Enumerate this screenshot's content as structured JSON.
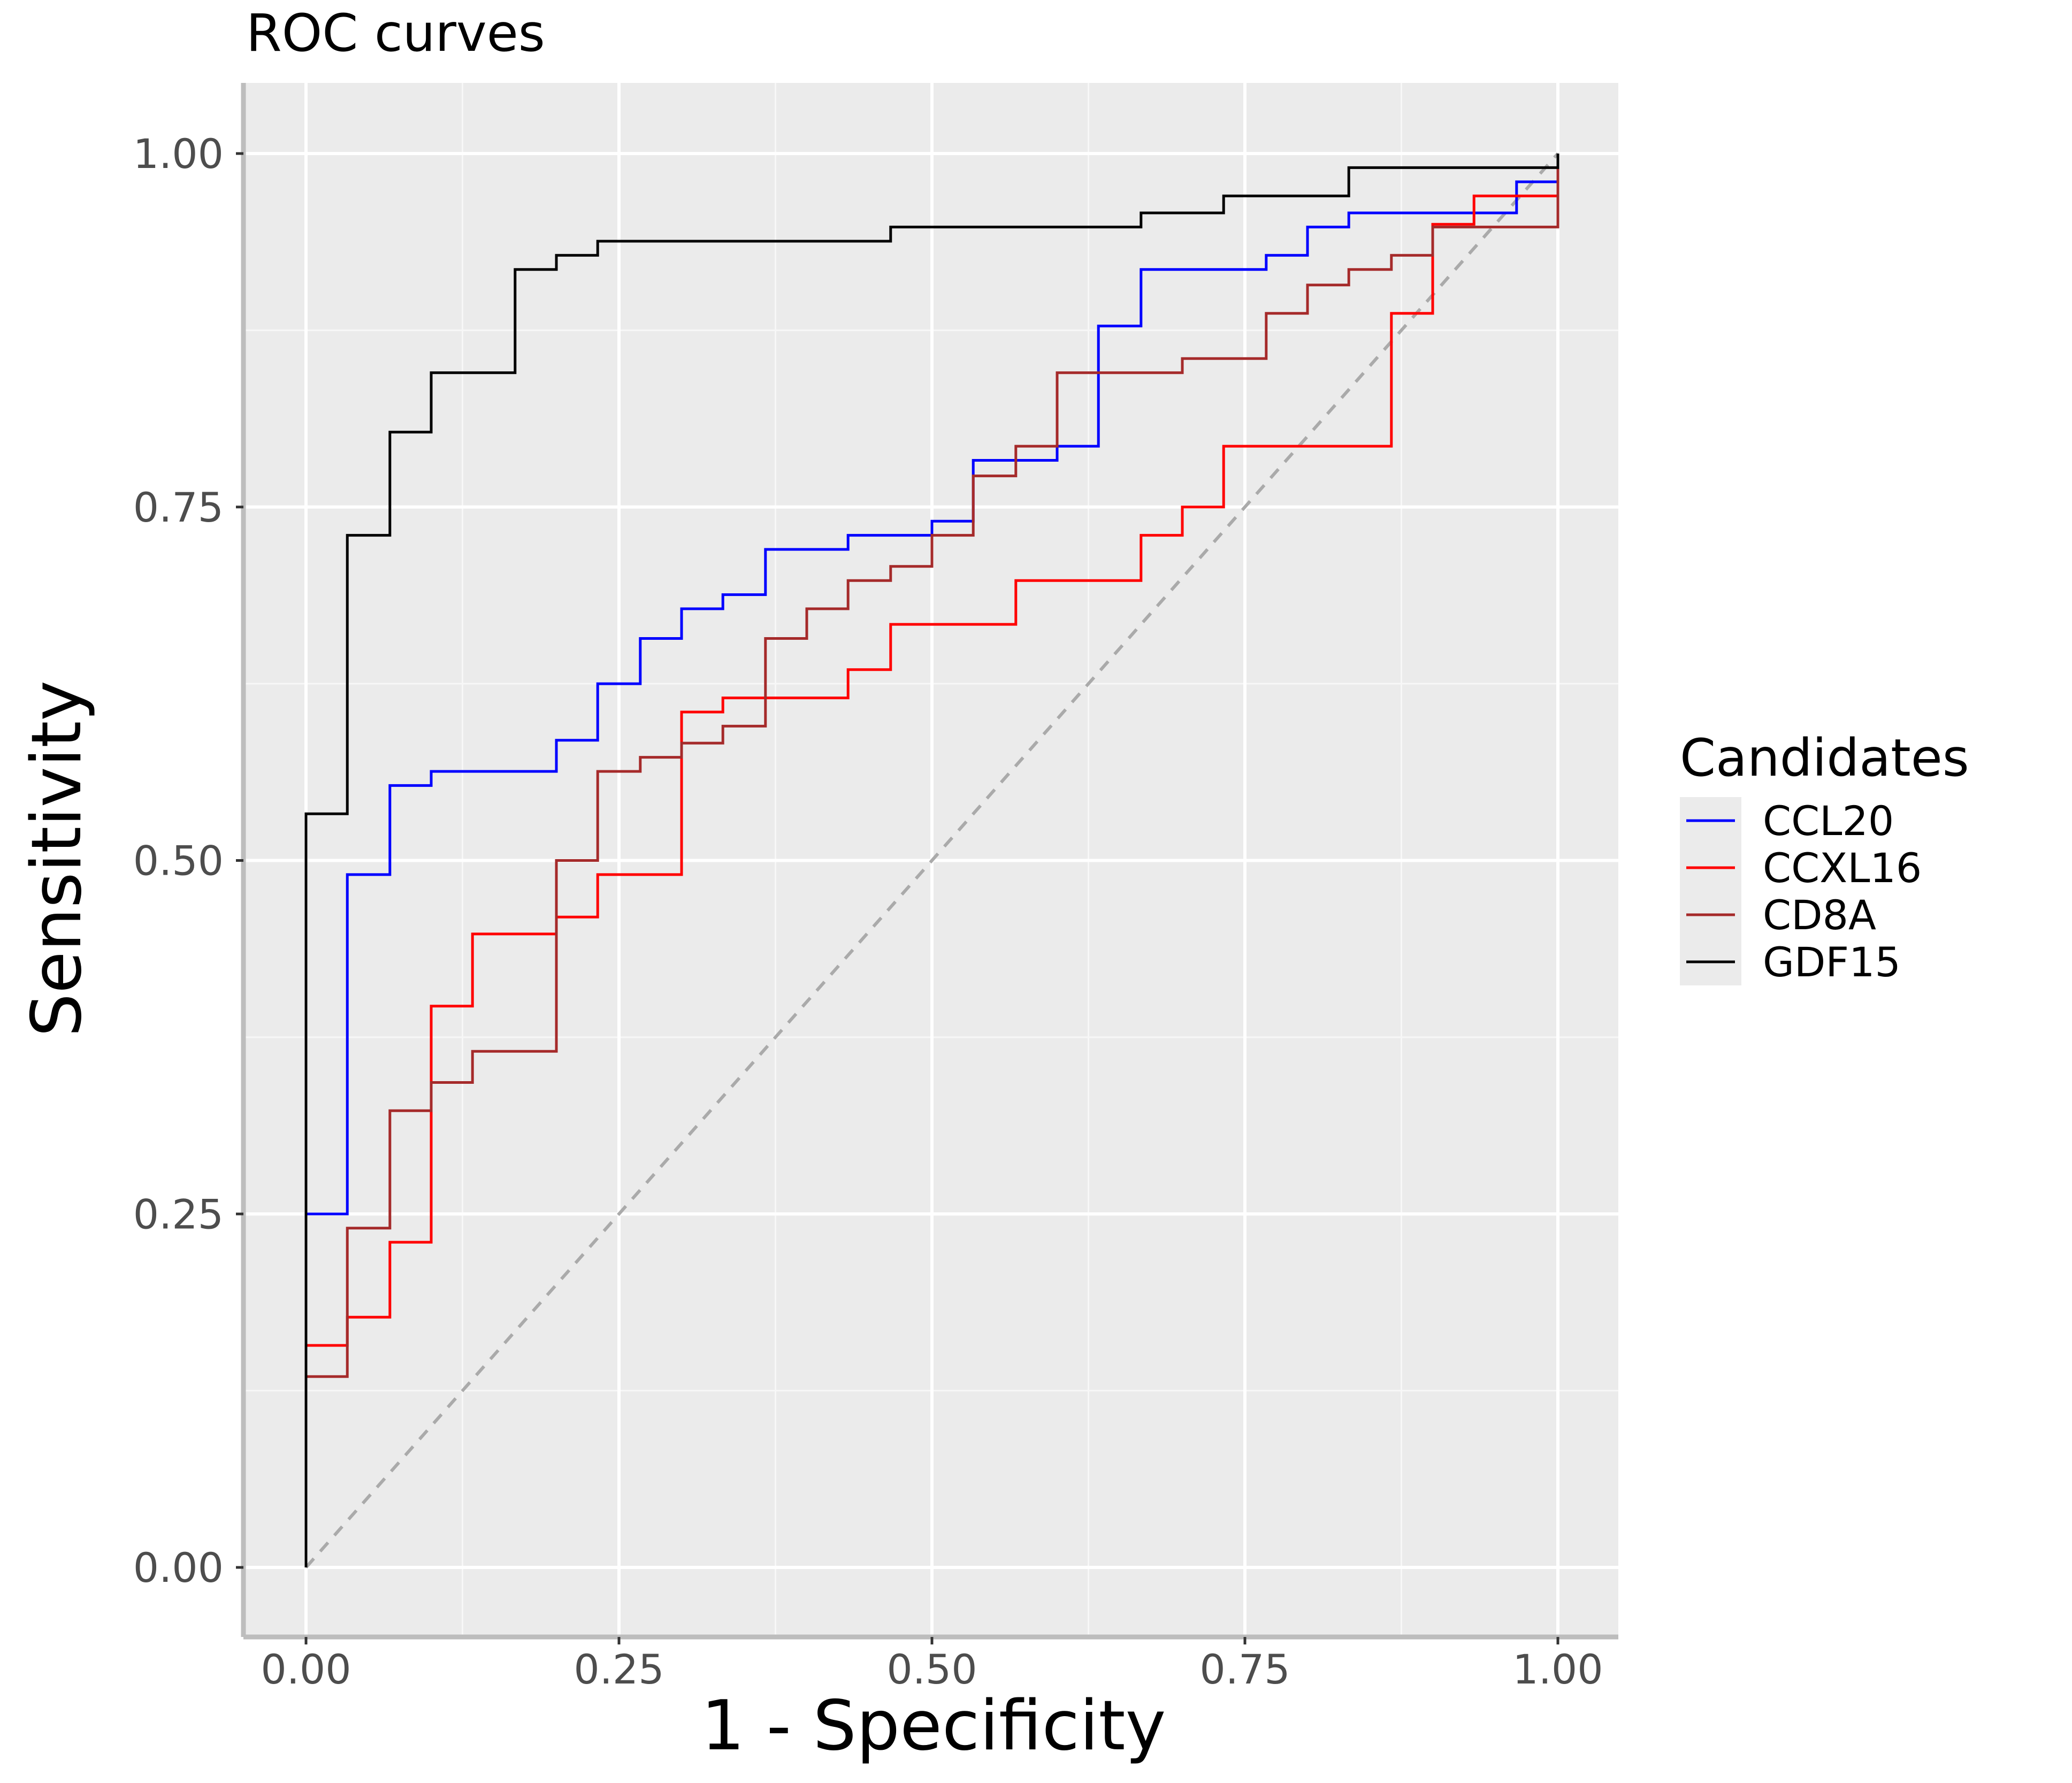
{
  "chart_data": {
    "type": "line",
    "title": "ROC curves",
    "xlabel": "1 - Specificity",
    "ylabel": "Sensitivity",
    "xlim": [
      0,
      1
    ],
    "ylim": [
      0,
      1
    ],
    "xticks": [
      0,
      0.25,
      0.5,
      0.75,
      1
    ],
    "yticks": [
      0,
      0.25,
      0.5,
      0.75,
      1
    ],
    "xtick_labels": [
      "0.00",
      "0.25",
      "0.50",
      "0.75",
      "1.00"
    ],
    "ytick_labels": [
      "0.00",
      "0.25",
      "0.50",
      "0.75",
      "1.00"
    ],
    "grid": true,
    "background": "#ebebeb",
    "legend": {
      "title": "Candidates",
      "position": "right"
    },
    "reference_line": {
      "from": [
        0,
        0
      ],
      "to": [
        1,
        1
      ],
      "color": "#aaaaaa",
      "style": "dashed"
    },
    "series": [
      {
        "name": "CCL20",
        "color": "#0000ff",
        "points": [
          [
            0,
            0
          ],
          [
            0,
            0.25
          ],
          [
            0.033,
            0.25
          ],
          [
            0.033,
            0.49
          ],
          [
            0.067,
            0.49
          ],
          [
            0.067,
            0.553
          ],
          [
            0.1,
            0.553
          ],
          [
            0.1,
            0.563
          ],
          [
            0.2,
            0.563
          ],
          [
            0.2,
            0.585
          ],
          [
            0.233,
            0.585
          ],
          [
            0.233,
            0.625
          ],
          [
            0.267,
            0.625
          ],
          [
            0.267,
            0.657
          ],
          [
            0.3,
            0.657
          ],
          [
            0.3,
            0.678
          ],
          [
            0.333,
            0.678
          ],
          [
            0.333,
            0.688
          ],
          [
            0.367,
            0.688
          ],
          [
            0.367,
            0.72
          ],
          [
            0.433,
            0.72
          ],
          [
            0.433,
            0.73
          ],
          [
            0.5,
            0.73
          ],
          [
            0.5,
            0.74
          ],
          [
            0.533,
            0.74
          ],
          [
            0.533,
            0.783
          ],
          [
            0.6,
            0.783
          ],
          [
            0.6,
            0.793
          ],
          [
            0.633,
            0.793
          ],
          [
            0.633,
            0.878
          ],
          [
            0.667,
            0.878
          ],
          [
            0.667,
            0.918
          ],
          [
            0.767,
            0.918
          ],
          [
            0.767,
            0.928
          ],
          [
            0.8,
            0.928
          ],
          [
            0.8,
            0.948
          ],
          [
            0.833,
            0.948
          ],
          [
            0.833,
            0.958
          ],
          [
            0.967,
            0.958
          ],
          [
            0.967,
            0.98
          ],
          [
            1,
            0.98
          ],
          [
            1,
            1
          ]
        ]
      },
      {
        "name": "CCXL16",
        "color": "#ff0000",
        "points": [
          [
            0,
            0
          ],
          [
            0,
            0.157
          ],
          [
            0.033,
            0.157
          ],
          [
            0.033,
            0.177
          ],
          [
            0.067,
            0.177
          ],
          [
            0.067,
            0.23
          ],
          [
            0.1,
            0.23
          ],
          [
            0.1,
            0.397
          ],
          [
            0.133,
            0.397
          ],
          [
            0.133,
            0.448
          ],
          [
            0.2,
            0.448
          ],
          [
            0.2,
            0.46
          ],
          [
            0.233,
            0.46
          ],
          [
            0.233,
            0.49
          ],
          [
            0.3,
            0.49
          ],
          [
            0.3,
            0.605
          ],
          [
            0.333,
            0.605
          ],
          [
            0.333,
            0.615
          ],
          [
            0.433,
            0.615
          ],
          [
            0.433,
            0.635
          ],
          [
            0.467,
            0.635
          ],
          [
            0.467,
            0.667
          ],
          [
            0.567,
            0.667
          ],
          [
            0.567,
            0.698
          ],
          [
            0.667,
            0.698
          ],
          [
            0.667,
            0.73
          ],
          [
            0.7,
            0.73
          ],
          [
            0.7,
            0.75
          ],
          [
            0.733,
            0.75
          ],
          [
            0.733,
            0.793
          ],
          [
            0.867,
            0.793
          ],
          [
            0.867,
            0.887
          ],
          [
            0.9,
            0.887
          ],
          [
            0.9,
            0.95
          ],
          [
            0.933,
            0.95
          ],
          [
            0.933,
            0.97
          ],
          [
            1,
            0.97
          ],
          [
            1,
            1
          ]
        ]
      },
      {
        "name": "CD8A",
        "color": "#a52a2a",
        "points": [
          [
            0,
            0
          ],
          [
            0,
            0.135
          ],
          [
            0.033,
            0.135
          ],
          [
            0.033,
            0.24
          ],
          [
            0.067,
            0.24
          ],
          [
            0.067,
            0.323
          ],
          [
            0.1,
            0.323
          ],
          [
            0.1,
            0.343
          ],
          [
            0.133,
            0.343
          ],
          [
            0.133,
            0.365
          ],
          [
            0.2,
            0.365
          ],
          [
            0.2,
            0.5
          ],
          [
            0.233,
            0.5
          ],
          [
            0.233,
            0.563
          ],
          [
            0.267,
            0.563
          ],
          [
            0.267,
            0.573
          ],
          [
            0.3,
            0.573
          ],
          [
            0.3,
            0.583
          ],
          [
            0.333,
            0.583
          ],
          [
            0.333,
            0.595
          ],
          [
            0.367,
            0.595
          ],
          [
            0.367,
            0.657
          ],
          [
            0.4,
            0.657
          ],
          [
            0.4,
            0.678
          ],
          [
            0.433,
            0.678
          ],
          [
            0.433,
            0.698
          ],
          [
            0.467,
            0.698
          ],
          [
            0.467,
            0.708
          ],
          [
            0.5,
            0.708
          ],
          [
            0.5,
            0.73
          ],
          [
            0.533,
            0.73
          ],
          [
            0.533,
            0.772
          ],
          [
            0.567,
            0.772
          ],
          [
            0.567,
            0.793
          ],
          [
            0.6,
            0.793
          ],
          [
            0.6,
            0.845
          ],
          [
            0.7,
            0.845
          ],
          [
            0.7,
            0.855
          ],
          [
            0.767,
            0.855
          ],
          [
            0.767,
            0.887
          ],
          [
            0.8,
            0.887
          ],
          [
            0.8,
            0.907
          ],
          [
            0.833,
            0.907
          ],
          [
            0.833,
            0.918
          ],
          [
            0.867,
            0.918
          ],
          [
            0.867,
            0.928
          ],
          [
            0.9,
            0.928
          ],
          [
            0.9,
            0.948
          ],
          [
            1,
            0.948
          ],
          [
            1,
            1
          ]
        ]
      },
      {
        "name": "GDF15",
        "color": "#000000",
        "points": [
          [
            0,
            0
          ],
          [
            0,
            0.533
          ],
          [
            0.033,
            0.533
          ],
          [
            0.033,
            0.73
          ],
          [
            0.067,
            0.73
          ],
          [
            0.067,
            0.803
          ],
          [
            0.1,
            0.803
          ],
          [
            0.1,
            0.845
          ],
          [
            0.167,
            0.845
          ],
          [
            0.167,
            0.918
          ],
          [
            0.2,
            0.918
          ],
          [
            0.2,
            0.928
          ],
          [
            0.233,
            0.928
          ],
          [
            0.233,
            0.938
          ],
          [
            0.467,
            0.938
          ],
          [
            0.467,
            0.948
          ],
          [
            0.667,
            0.948
          ],
          [
            0.667,
            0.958
          ],
          [
            0.733,
            0.958
          ],
          [
            0.733,
            0.97
          ],
          [
            0.833,
            0.97
          ],
          [
            0.833,
            0.99
          ],
          [
            1,
            0.99
          ],
          [
            1,
            1
          ]
        ]
      }
    ]
  }
}
